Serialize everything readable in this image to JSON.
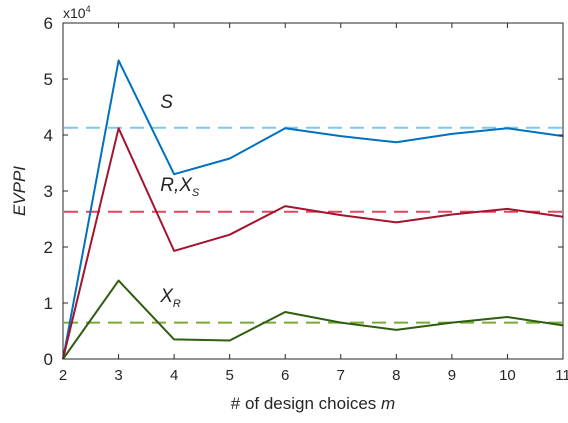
{
  "chart_data": {
    "type": "line",
    "xlabel": "# of design choices",
    "xlabel_var": "m",
    "ylabel": "EVPPI",
    "y_exponent_label": "x10",
    "y_exponent_power": "4",
    "xlim": [
      2,
      11
    ],
    "ylim": [
      0,
      6
    ],
    "y_scale": 10000,
    "x_ticks": [
      2,
      3,
      4,
      5,
      6,
      7,
      8,
      9,
      10,
      11
    ],
    "y_ticks": [
      0,
      1,
      2,
      3,
      4,
      5,
      6
    ],
    "grid": false,
    "x": [
      2,
      3,
      4,
      5,
      6,
      7,
      8,
      9,
      10,
      11
    ],
    "series": [
      {
        "key": "S",
        "color": "#0072bd",
        "values": [
          0,
          53300,
          33000,
          35800,
          41200,
          39800,
          38700,
          40200,
          41200,
          39800
        ],
        "reference": 41300,
        "reference_color": "#7ec8ec"
      },
      {
        "key": "RXS",
        "color": "#a2142f",
        "values": [
          0,
          41200,
          19300,
          22200,
          27300,
          25700,
          24400,
          25800,
          26800,
          25400
        ],
        "reference": 26300,
        "reference_color": "#e0475f"
      },
      {
        "key": "XR",
        "color": "#2e5e0f",
        "values": [
          0,
          14000,
          3500,
          3300,
          8400,
          6500,
          5200,
          6500,
          7500,
          6000
        ],
        "reference": 6500,
        "reference_color": "#77ac30"
      }
    ],
    "annotations": [
      {
        "key": "S",
        "main": "S",
        "sub": "",
        "x": 3.75,
        "y": 44800
      },
      {
        "key": "RXS",
        "main": "R,X",
        "sub": "S",
        "x": 3.75,
        "y": 30000
      },
      {
        "key": "XR",
        "main": "X",
        "sub": "R",
        "x": 3.75,
        "y": 10200
      }
    ]
  }
}
